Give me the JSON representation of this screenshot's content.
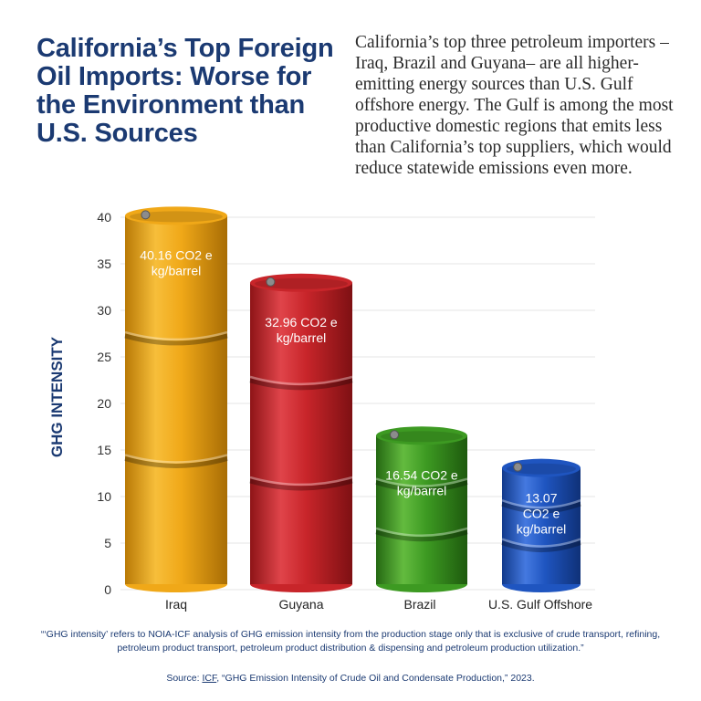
{
  "header": {
    "title": "California’s Top Foreign Oil Imports: Worse for the Environment than U.S. Sources",
    "description": "California’s top three petroleum importers –Iraq, Brazil and Guyana– are all higher-emitting energy sources than U.S. Gulf offshore energy. The Gulf is among the most productive domestic regions that emits less than California’s top suppliers, which would reduce statewide emissions even more."
  },
  "chart_data": {
    "type": "bar",
    "categories": [
      "Iraq",
      "Guyana",
      "Brazil",
      "U.S. Gulf Offshore"
    ],
    "values": [
      40.16,
      32.96,
      16.54,
      13.07
    ],
    "data_labels": [
      "40.16 CO2 e kg/barrel",
      "32.96 CO2 e kg/barrel",
      "16.54 CO2 e kg/barrel",
      "13.07 CO2 e kg/barrel"
    ],
    "colors": [
      "#f0a818",
      "#c8252a",
      "#3d9a22",
      "#1f55c0"
    ],
    "ylabel": "GHG INTENSITY",
    "ylim": [
      0,
      40
    ],
    "yticks": [
      0,
      5,
      10,
      15,
      20,
      25,
      30,
      35,
      40
    ],
    "grid": true
  },
  "footer": {
    "footnote": "“‘GHG intensity’ refers to NOIA-ICF analysis of GHG emission intensity from the production stage only that is exclusive of crude transport, refining, petroleum product transport, petroleum product distribution & dispensing and petroleum production utilization.”",
    "source_prefix": "Source: ",
    "source_link": "ICF",
    "source_rest": ", “GHG Emission Intensity of Crude Oil and Condensate Production,” 2023."
  }
}
